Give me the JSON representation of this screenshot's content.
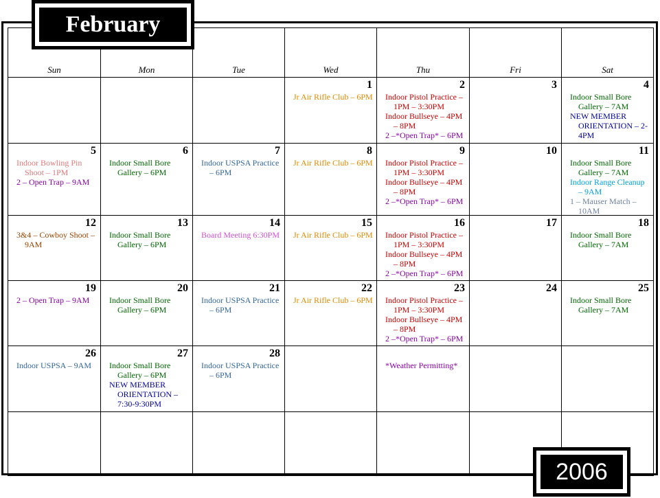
{
  "title": "February",
  "year": "2006",
  "weekdays": [
    "Sun",
    "Mon",
    "Tue",
    "Wed",
    "Thu",
    "Fri",
    "Sat"
  ],
  "weeks": [
    [
      null,
      null,
      null,
      {
        "day": 1,
        "events": [
          {
            "text": "Jr Air Rifle Club – 6PM",
            "color": "#e08a00"
          }
        ]
      },
      {
        "day": 2,
        "events": [
          {
            "text": "Indoor Pistol Practice – 1PM – 3:30PM",
            "color": "#cc0000"
          },
          {
            "text": "Indoor Bullseye – 4PM – 8PM",
            "color": "#cc0000"
          },
          {
            "text": "2 –*Open Trap* – 6PM",
            "color": "#8a00a8"
          }
        ]
      },
      {
        "day": 3,
        "events": []
      },
      {
        "day": 4,
        "events": [
          {
            "text": "Indoor Small Bore Gallery – 7AM",
            "color": "#006600"
          },
          {
            "text": "NEW MEMBER ORIENTATION – 2-4PM",
            "color": "#000099"
          }
        ]
      }
    ],
    [
      {
        "day": 5,
        "events": [
          {
            "text": "Indoor Bowling Pin Shoot – 1PM",
            "color": "#e07878"
          },
          {
            "text": "2 – Open Trap – 9AM",
            "color": "#8a00a8"
          }
        ]
      },
      {
        "day": 6,
        "events": [
          {
            "text": "Indoor Small Bore Gallery – 6PM",
            "color": "#006600"
          }
        ]
      },
      {
        "day": 7,
        "events": [
          {
            "text": "Indoor USPSA Practice – 6PM",
            "color": "#336699"
          }
        ]
      },
      {
        "day": 8,
        "events": [
          {
            "text": "Jr Air Rifle Club – 6PM",
            "color": "#e08a00"
          }
        ]
      },
      {
        "day": 9,
        "events": [
          {
            "text": "Indoor Pistol Practice – 1PM – 3:30PM",
            "color": "#cc0000"
          },
          {
            "text": "Indoor Bullseye – 4PM – 8PM",
            "color": "#cc0000"
          },
          {
            "text": "2 –*Open Trap* – 6PM",
            "color": "#8a00a8"
          }
        ]
      },
      {
        "day": 10,
        "events": []
      },
      {
        "day": 11,
        "events": [
          {
            "text": "Indoor Small Bore Gallery – 7AM",
            "color": "#006600"
          },
          {
            "text": "Indoor Range Cleanup – 9AM",
            "color": "#00a0e0"
          },
          {
            "text": "1 – Mauser Match – 10AM",
            "color": "#7080a0"
          }
        ]
      }
    ],
    [
      {
        "day": 12,
        "events": [
          {
            "text": "3&4 – Cowboy Shoot – 9AM",
            "color": "#994400"
          }
        ]
      },
      {
        "day": 13,
        "events": [
          {
            "text": "Indoor Small Bore Gallery – 6PM",
            "color": "#006600"
          }
        ]
      },
      {
        "day": 14,
        "events": [
          {
            "text": "Board Meeting 6:30PM",
            "color": "#d050d0"
          }
        ]
      },
      {
        "day": 15,
        "events": [
          {
            "text": "Jr Air Rifle Club – 6PM",
            "color": "#e08a00"
          }
        ]
      },
      {
        "day": 16,
        "events": [
          {
            "text": "Indoor Pistol Practice – 1PM – 3:30PM",
            "color": "#cc0000"
          },
          {
            "text": "Indoor Bullseye – 4PM – 8PM",
            "color": "#cc0000"
          },
          {
            "text": "2 –*Open Trap* – 6PM",
            "color": "#8a00a8"
          }
        ]
      },
      {
        "day": 17,
        "events": []
      },
      {
        "day": 18,
        "events": [
          {
            "text": "Indoor Small Bore Gallery – 7AM",
            "color": "#006600"
          }
        ]
      }
    ],
    [
      {
        "day": 19,
        "events": [
          {
            "text": "2 – Open Trap – 9AM",
            "color": "#8a00a8"
          }
        ]
      },
      {
        "day": 20,
        "events": [
          {
            "text": "Indoor Small Bore Gallery – 6PM",
            "color": "#006600"
          }
        ]
      },
      {
        "day": 21,
        "events": [
          {
            "text": "Indoor USPSA Practice – 6PM",
            "color": "#336699"
          }
        ]
      },
      {
        "day": 22,
        "events": [
          {
            "text": "Jr Air Rifle Club – 6PM",
            "color": "#e08a00"
          }
        ]
      },
      {
        "day": 23,
        "events": [
          {
            "text": "Indoor Pistol Practice – 1PM – 3:30PM",
            "color": "#cc0000"
          },
          {
            "text": "Indoor Bullseye – 4PM – 8PM",
            "color": "#cc0000"
          },
          {
            "text": "2 –*Open Trap* – 6PM",
            "color": "#8a00a8"
          }
        ]
      },
      {
        "day": 24,
        "events": []
      },
      {
        "day": 25,
        "events": [
          {
            "text": "Indoor Small Bore Gallery – 7AM",
            "color": "#006600"
          }
        ]
      }
    ],
    [
      {
        "day": 26,
        "events": [
          {
            "text": "Indoor USPSA – 9AM",
            "color": "#336699"
          }
        ]
      },
      {
        "day": 27,
        "events": [
          {
            "text": "Indoor Small Bore Gallery – 6PM",
            "color": "#006600"
          },
          {
            "text": "NEW MEMBER ORIENTATION – 7:30-9:30PM",
            "color": "#000099"
          }
        ]
      },
      {
        "day": 28,
        "events": [
          {
            "text": "Indoor USPSA Practice – 6PM",
            "color": "#336699"
          }
        ]
      },
      null,
      {
        "events": [
          {
            "text": "*Weather Permitting*",
            "color": "#8a00a8"
          }
        ]
      },
      null,
      null
    ],
    [
      null,
      null,
      null,
      null,
      null,
      null,
      null
    ]
  ]
}
